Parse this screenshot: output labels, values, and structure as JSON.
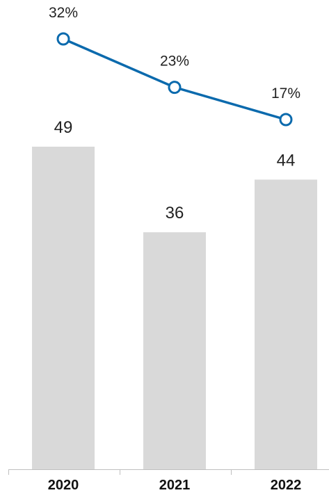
{
  "chart_data": {
    "type": "bar",
    "categories": [
      "2020",
      "2021",
      "2022"
    ],
    "bar_series": {
      "values": [
        49,
        36,
        44
      ],
      "color": "#d9d9d9"
    },
    "line_series": {
      "values": [
        32,
        23,
        17
      ],
      "unit": "%",
      "color": "#0b6aad"
    },
    "title": "",
    "xlabel": "",
    "ylabel": "",
    "grid": false,
    "legend": "none"
  }
}
